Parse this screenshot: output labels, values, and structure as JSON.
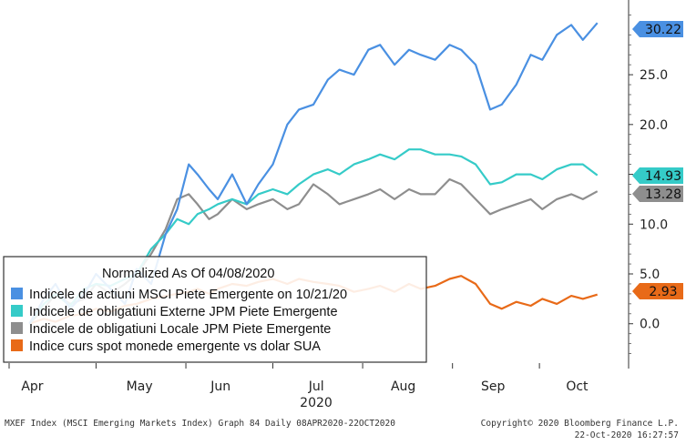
{
  "chart_data": {
    "type": "line",
    "legend_title": "Normalized As Of 04/08/2020",
    "x_tick_labels": [
      "Apr",
      "May",
      "Jun",
      "Jul",
      "Aug",
      "Sep",
      "Oct"
    ],
    "x_year_label": "2020",
    "y_ticks": [
      0.0,
      5.0,
      10.0,
      15.0,
      20.0,
      25.0
    ],
    "y_tick_labels": [
      "0.0",
      "5.0",
      "10.0",
      "15.0",
      "20.0",
      "25.0"
    ],
    "ylim": [
      -4.5,
      32.5
    ],
    "y_axis_position": "right",
    "grid": false,
    "legend_placement": "bottom-left",
    "series": [
      {
        "name": "Indicele de actiuni MSCI Piete Emergente on 10/21/20",
        "color": "#4a90e2",
        "last_value_label": "30.22",
        "x": [
          "2020-04-08",
          "2020-04-13",
          "2020-04-17",
          "2020-04-22",
          "2020-04-27",
          "2020-05-01",
          "2020-05-06",
          "2020-05-11",
          "2020-05-15",
          "2020-05-20",
          "2020-05-25",
          "2020-05-29",
          "2020-06-02",
          "2020-06-05",
          "2020-06-09",
          "2020-06-12",
          "2020-06-17",
          "2020-06-22",
          "2020-06-26",
          "2020-07-01",
          "2020-07-06",
          "2020-07-10",
          "2020-07-15",
          "2020-07-20",
          "2020-07-24",
          "2020-07-29",
          "2020-08-03",
          "2020-08-07",
          "2020-08-12",
          "2020-08-17",
          "2020-08-21",
          "2020-08-26",
          "2020-08-31",
          "2020-09-04",
          "2020-09-09",
          "2020-09-14",
          "2020-09-18",
          "2020-09-23",
          "2020-09-28",
          "2020-10-02",
          "2020-10-07",
          "2020-10-12",
          "2020-10-16",
          "2020-10-21"
        ],
        "values": [
          0.0,
          2.5,
          4.0,
          1.5,
          3.0,
          5.0,
          3.5,
          2.0,
          5.5,
          4.0,
          9.0,
          11.5,
          16.0,
          15.0,
          13.5,
          12.5,
          15.0,
          12.0,
          14.0,
          16.0,
          20.0,
          21.5,
          22.0,
          24.5,
          25.5,
          25.0,
          27.5,
          28.0,
          26.0,
          27.5,
          27.0,
          26.5,
          28.0,
          27.5,
          26.0,
          21.5,
          22.0,
          24.0,
          27.0,
          26.5,
          29.0,
          30.0,
          28.5,
          30.2
        ]
      },
      {
        "name": "Indicele de obligatiuni Externe JPM Piete Emergente",
        "color": "#35cbc8",
        "last_value_label": "14.93",
        "x": [
          "2020-04-08",
          "2020-04-13",
          "2020-04-17",
          "2020-04-22",
          "2020-04-27",
          "2020-05-01",
          "2020-05-06",
          "2020-05-11",
          "2020-05-15",
          "2020-05-20",
          "2020-05-25",
          "2020-05-29",
          "2020-06-02",
          "2020-06-05",
          "2020-06-09",
          "2020-06-12",
          "2020-06-17",
          "2020-06-22",
          "2020-06-26",
          "2020-07-01",
          "2020-07-06",
          "2020-07-10",
          "2020-07-15",
          "2020-07-20",
          "2020-07-24",
          "2020-07-29",
          "2020-08-03",
          "2020-08-07",
          "2020-08-12",
          "2020-08-17",
          "2020-08-21",
          "2020-08-26",
          "2020-08-31",
          "2020-09-04",
          "2020-09-09",
          "2020-09-14",
          "2020-09-18",
          "2020-09-23",
          "2020-09-28",
          "2020-10-02",
          "2020-10-07",
          "2020-10-12",
          "2020-10-16",
          "2020-10-21"
        ],
        "values": [
          0.0,
          2.0,
          3.0,
          1.8,
          3.5,
          4.0,
          3.8,
          4.5,
          5.0,
          7.5,
          9.0,
          10.5,
          10.0,
          11.0,
          11.5,
          12.0,
          12.5,
          12.0,
          13.0,
          13.5,
          13.0,
          14.0,
          15.0,
          15.5,
          15.0,
          16.0,
          16.5,
          17.0,
          16.5,
          17.5,
          17.5,
          17.0,
          17.0,
          16.8,
          16.0,
          14.0,
          14.2,
          15.0,
          15.0,
          14.5,
          15.5,
          16.0,
          16.0,
          14.9
        ]
      },
      {
        "name": "Indicele de obligatiuni Locale JPM Piete Emergente",
        "color": "#8e8e8e",
        "last_value_label": "13.28",
        "x": [
          "2020-04-08",
          "2020-04-13",
          "2020-04-17",
          "2020-04-22",
          "2020-04-27",
          "2020-05-01",
          "2020-05-06",
          "2020-05-11",
          "2020-05-15",
          "2020-05-20",
          "2020-05-25",
          "2020-05-29",
          "2020-06-02",
          "2020-06-05",
          "2020-06-09",
          "2020-06-12",
          "2020-06-17",
          "2020-06-22",
          "2020-06-26",
          "2020-07-01",
          "2020-07-06",
          "2020-07-10",
          "2020-07-15",
          "2020-07-20",
          "2020-07-24",
          "2020-07-29",
          "2020-08-03",
          "2020-08-07",
          "2020-08-12",
          "2020-08-17",
          "2020-08-21",
          "2020-08-26",
          "2020-08-31",
          "2020-09-04",
          "2020-09-09",
          "2020-09-14",
          "2020-09-18",
          "2020-09-23",
          "2020-09-28",
          "2020-10-02",
          "2020-10-07",
          "2020-10-12",
          "2020-10-16",
          "2020-10-21"
        ],
        "values": [
          0.0,
          1.5,
          3.0,
          2.0,
          2.5,
          4.0,
          3.0,
          4.0,
          5.0,
          7.0,
          9.5,
          12.5,
          13.0,
          12.0,
          10.5,
          11.0,
          12.5,
          11.5,
          12.0,
          12.5,
          11.5,
          12.0,
          14.0,
          13.0,
          12.0,
          12.5,
          13.0,
          13.5,
          12.5,
          13.5,
          13.0,
          13.0,
          14.5,
          14.0,
          12.5,
          11.0,
          11.5,
          12.0,
          12.5,
          11.5,
          12.5,
          13.0,
          12.5,
          13.3
        ]
      },
      {
        "name": "Indice curs spot monede emergente vs dolar SUA",
        "color": "#e86a18",
        "last_value_label": "2.93",
        "x": [
          "2020-04-08",
          "2020-04-13",
          "2020-04-17",
          "2020-04-22",
          "2020-04-27",
          "2020-05-01",
          "2020-05-06",
          "2020-05-11",
          "2020-05-15",
          "2020-05-20",
          "2020-05-25",
          "2020-05-29",
          "2020-06-02",
          "2020-06-05",
          "2020-06-09",
          "2020-06-12",
          "2020-06-17",
          "2020-06-22",
          "2020-06-26",
          "2020-07-01",
          "2020-07-06",
          "2020-07-10",
          "2020-07-15",
          "2020-07-20",
          "2020-07-24",
          "2020-07-29",
          "2020-08-03",
          "2020-08-07",
          "2020-08-12",
          "2020-08-17",
          "2020-08-21",
          "2020-08-26",
          "2020-08-31",
          "2020-09-04",
          "2020-09-09",
          "2020-09-14",
          "2020-09-18",
          "2020-09-23",
          "2020-09-28",
          "2020-10-02",
          "2020-10-07",
          "2020-10-12",
          "2020-10-16",
          "2020-10-21"
        ],
        "values": [
          0.0,
          0.5,
          0.2,
          0.8,
          1.0,
          1.5,
          1.2,
          1.8,
          2.0,
          2.5,
          2.8,
          3.0,
          3.2,
          3.5,
          3.0,
          3.5,
          4.0,
          3.8,
          4.2,
          4.5,
          4.0,
          4.5,
          4.2,
          4.0,
          3.8,
          3.2,
          3.5,
          3.8,
          3.2,
          4.0,
          3.5,
          3.8,
          4.5,
          4.8,
          4.0,
          2.0,
          1.5,
          2.2,
          1.8,
          2.5,
          2.0,
          2.8,
          2.5,
          2.93
        ]
      }
    ]
  },
  "footer": {
    "left": "MXEF Index (MSCI Emerging Markets Index) Graph 84  Daily 08APR2020-22OCT2020",
    "right_line1": "Copyright© 2020 Bloomberg Finance L.P.",
    "right_line2": "22-Oct-2020 16:27:57"
  }
}
